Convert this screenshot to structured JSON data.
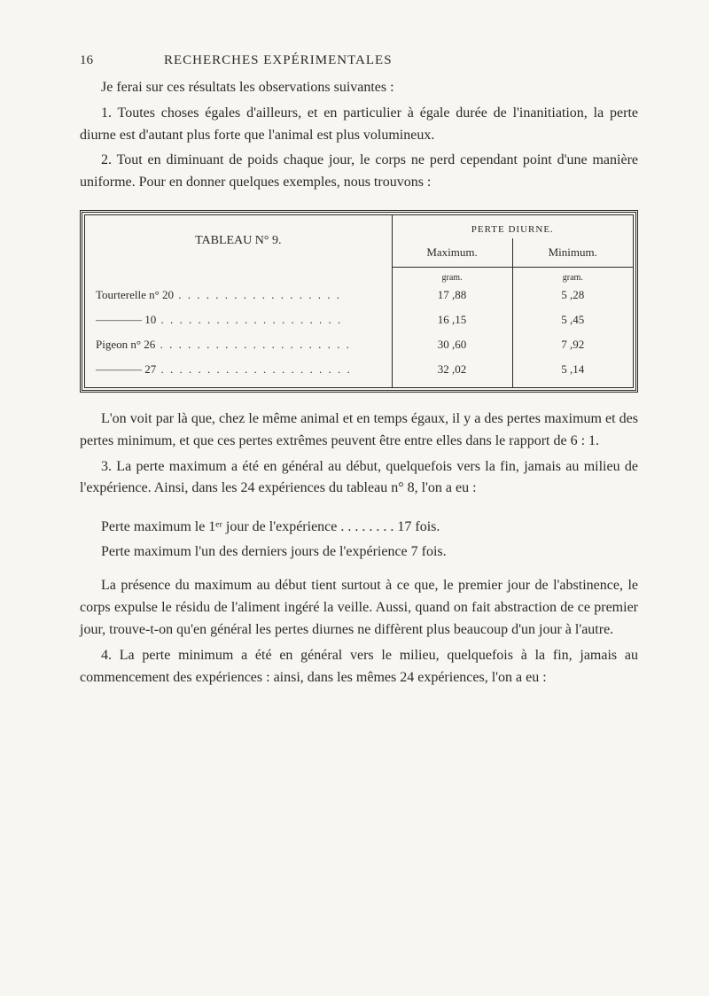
{
  "page_number": "16",
  "page_title": "RECHERCHES EXPÉRIMENTALES",
  "intro_para": "Je ferai sur ces résultats les observations suivantes :",
  "para_1": "1. Toutes choses égales d'ailleurs, et en particulier à égale durée de l'inanitiation, la perte diurne est d'autant plus forte que l'animal est plus volumineux.",
  "para_2": "2. Tout en diminuant de poids chaque jour, le corps ne perd cependant point d'une manière uniforme. Pour en donner quelques exemples, nous trouvons :",
  "table": {
    "title_left": "TABLEAU N° 9.",
    "title_right": "PERTE DIURNE.",
    "col_headers": [
      "Maximum.",
      "Minimum."
    ],
    "unit_label": "gram.",
    "rows": [
      {
        "label": "Tourterelle n° 20",
        "max": "17 ,88",
        "min": "5 ,28"
      },
      {
        "label": "———— 10",
        "max": "16 ,15",
        "min": "5 ,45"
      },
      {
        "label": "Pigeon n° 26",
        "max": "30 ,60",
        "min": "7 ,92"
      },
      {
        "label": "———— 27",
        "max": "32 ,02",
        "min": "5 ,14"
      }
    ]
  },
  "para_after_table_1": "L'on voit par là que, chez le même animal et en temps égaux, il y a des pertes maximum et des pertes minimum, et que ces pertes extrêmes peuvent être entre elles dans le rapport de 6 : 1.",
  "para_after_table_2": "3. La perte maximum a été en général au début, quelquefois vers la fin, jamais au milieu de l'expérience. Ainsi, dans les 24 expériences du tableau n° 8, l'on a eu :",
  "perte_line_1": "Perte maximum le 1ᵉʳ jour de l'expérience . . . . . . . .  17 fois.",
  "perte_line_2": "Perte maximum l'un des derniers jours de l'expérience  7 fois.",
  "para_3": "La présence du maximum au début tient surtout à ce que, le premier jour de l'abstinence, le corps expulse le résidu de l'aliment ingéré la veille. Aussi, quand on fait abstraction de ce premier jour, trouve-t-on qu'en général les pertes diurnes ne diffèrent plus beaucoup d'un jour à l'autre.",
  "para_4": "4. La perte minimum a été en général vers le milieu, quelquefois à la fin, jamais au commencement des expériences : ainsi, dans les mêmes 24 expériences, l'on a eu :"
}
